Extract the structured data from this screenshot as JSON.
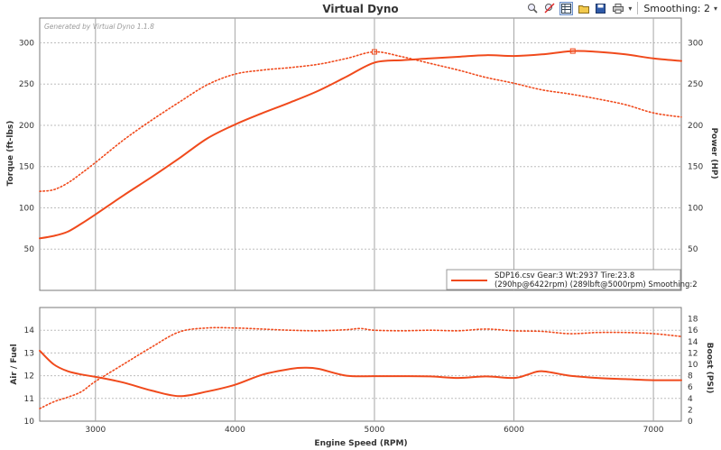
{
  "window": {
    "title": "Virtual Dyno",
    "watermark": "Generated by Virtual Dyno 1.1.8"
  },
  "toolbar": {
    "icons": [
      "zoom-icon",
      "no-zoom-icon",
      "table-icon",
      "open-folder-icon",
      "save-icon",
      "print-icon"
    ],
    "smoothing_label": "Smoothing: 2"
  },
  "colors": {
    "series": "#f04a1c",
    "grid": "#bdbdbd",
    "vgrid": "#a6a6a6",
    "frame": "#7a7a7a"
  },
  "chart_data": [
    {
      "type": "line",
      "xlabel": "",
      "ylabel": "Torque (ft-lbs)",
      "y2label": "Power (HP)",
      "xlim": [
        2600,
        7200
      ],
      "ylim": [
        0,
        330
      ],
      "y2lim": [
        0,
        330
      ],
      "yticks": [
        50,
        100,
        150,
        200,
        250,
        300
      ],
      "y2ticks": [
        50,
        100,
        150,
        200,
        250,
        300
      ],
      "legend": {
        "position": "bottom-right",
        "line1": "SDP16.csv Gear:3 Wt:2937 Tire:23.8",
        "line2": "(290hp@6422rpm) (289lbft@5000rpm) Smoothing:2"
      },
      "series": [
        {
          "style": "solid",
          "axis": "y2",
          "x": [
            2600,
            2700,
            2800,
            2900,
            3000,
            3200,
            3400,
            3600,
            3800,
            4000,
            4200,
            4400,
            4600,
            4800,
            5000,
            5200,
            5400,
            5600,
            5800,
            6000,
            6200,
            6422,
            6600,
            6800,
            7000,
            7200
          ],
          "values": [
            63,
            66,
            71,
            81,
            92,
            115,
            137,
            160,
            184,
            201,
            215,
            228,
            242,
            259,
            276,
            279,
            281,
            283,
            285,
            284,
            286,
            290,
            289,
            286,
            281,
            278
          ]
        },
        {
          "style": "dotted",
          "axis": "y",
          "x": [
            2600,
            2700,
            2800,
            2900,
            3000,
            3200,
            3400,
            3600,
            3800,
            4000,
            4200,
            4400,
            4600,
            4800,
            5000,
            5200,
            5400,
            5600,
            5800,
            6000,
            6200,
            6400,
            6600,
            6800,
            7000,
            7200
          ],
          "values": [
            120,
            122,
            130,
            142,
            155,
            182,
            206,
            228,
            249,
            262,
            267,
            270,
            274,
            281,
            289,
            283,
            275,
            267,
            258,
            251,
            243,
            238,
            232,
            225,
            215,
            210
          ]
        }
      ]
    },
    {
      "type": "line",
      "xlabel": "Engine Speed (RPM)",
      "ylabel": "Air / Fuel",
      "y2label": "Boost (PSI)",
      "xlim": [
        2600,
        7200
      ],
      "xticks": [
        3000,
        4000,
        5000,
        6000,
        7000
      ],
      "ylim": [
        10,
        15
      ],
      "y2lim": [
        0,
        20
      ],
      "yticks": [
        10,
        11,
        12,
        13,
        14
      ],
      "y2ticks": [
        0,
        2,
        4,
        6,
        8,
        10,
        12,
        14,
        16,
        18
      ],
      "series": [
        {
          "style": "solid",
          "axis": "y",
          "x": [
            2600,
            2700,
            2800,
            2900,
            3000,
            3200,
            3400,
            3600,
            3800,
            4000,
            4200,
            4400,
            4500,
            4600,
            4800,
            5000,
            5200,
            5400,
            5600,
            5800,
            6000,
            6100,
            6200,
            6400,
            6600,
            6800,
            7000,
            7200
          ],
          "values": [
            13.1,
            12.5,
            12.2,
            12.05,
            11.95,
            11.7,
            11.35,
            11.1,
            11.3,
            11.6,
            12.05,
            12.3,
            12.35,
            12.3,
            12.0,
            11.98,
            11.98,
            11.97,
            11.9,
            11.97,
            11.9,
            12.05,
            12.2,
            12.0,
            11.9,
            11.85,
            11.8,
            11.8
          ]
        },
        {
          "style": "dotted",
          "axis": "y2",
          "x": [
            2600,
            2700,
            2800,
            2900,
            3000,
            3200,
            3400,
            3600,
            3800,
            4000,
            4200,
            4400,
            4600,
            4800,
            4900,
            5000,
            5200,
            5400,
            5600,
            5800,
            6000,
            6200,
            6400,
            6600,
            6800,
            7000,
            7200
          ],
          "values": [
            2.2,
            3.4,
            4.2,
            5.2,
            7.0,
            10.0,
            13.0,
            15.7,
            16.4,
            16.4,
            16.2,
            16.0,
            15.9,
            16.1,
            16.3,
            16.0,
            15.9,
            16.0,
            15.9,
            16.2,
            15.9,
            15.8,
            15.4,
            15.6,
            15.6,
            15.4,
            14.9
          ]
        }
      ]
    }
  ]
}
